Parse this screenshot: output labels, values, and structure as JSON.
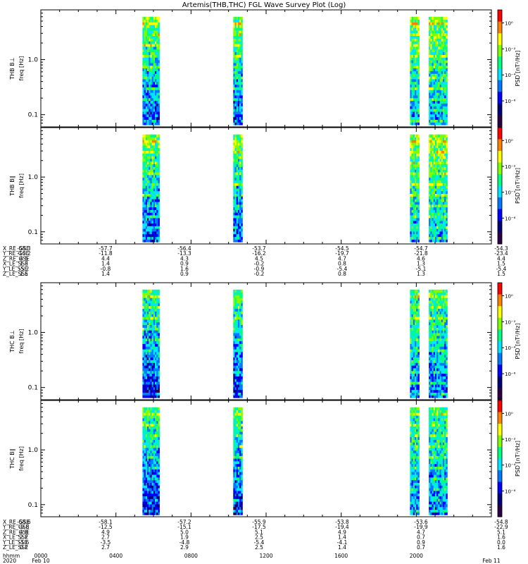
{
  "title": "Artemis(THB,THC) FGL Wave Survey Plot (Log)",
  "colors": {
    "colormap": [
      "#2b0040",
      "#00007a",
      "#0000ff",
      "#0078ff",
      "#00e6ff",
      "#00ff80",
      "#80ff00",
      "#ffff00",
      "#ff8000",
      "#ff0000"
    ]
  },
  "chart_data": [
    {
      "type": "heatmap",
      "name": "THB B⊥",
      "ylabel_probe": "THB B⊥",
      "ylabel": "freq [Hz]",
      "yscale": "log",
      "ylim": [
        0.06,
        8.0
      ],
      "y_ticks": [
        "1.0",
        "0.1"
      ],
      "colorbar_label": "PSD [nT²/Hz]",
      "colorbar_ticks": [
        "10⁰",
        "10⁻²",
        "10⁻⁴",
        "10⁻⁶"
      ],
      "data_intervals_hhmm": [
        [
          "05:25",
          "06:15"
        ],
        [
          "10:15",
          "10:40"
        ],
        [
          "19:40",
          "20:05"
        ],
        [
          "20:40",
          "21:35"
        ]
      ],
      "psd_log10_range": [
        -8,
        1
      ]
    },
    {
      "type": "heatmap",
      "name": "THB B∥",
      "ylabel_probe": "THB B∥",
      "ylabel": "freq [Hz]",
      "yscale": "log",
      "ylim": [
        0.06,
        8.0
      ],
      "y_ticks": [
        "1.0",
        "0.1"
      ],
      "colorbar_label": "PSD [nT²/Hz]",
      "colorbar_ticks": [
        "10⁰",
        "10⁻²",
        "10⁻⁴",
        "10⁻⁶"
      ],
      "data_intervals_hhmm": [
        [
          "05:25",
          "06:15"
        ],
        [
          "10:15",
          "10:40"
        ],
        [
          "19:40",
          "20:05"
        ],
        [
          "20:40",
          "21:35"
        ]
      ],
      "psd_log10_range": [
        -8,
        1
      ]
    },
    {
      "type": "heatmap",
      "name": "THC B⊥",
      "ylabel_probe": "THC B⊥",
      "ylabel": "freq [Hz]",
      "yscale": "log",
      "ylim": [
        0.06,
        8.0
      ],
      "y_ticks": [
        "1.0",
        "0.1"
      ],
      "colorbar_label": "PSD [nT²/Hz]",
      "colorbar_ticks": [
        "10⁰",
        "10⁻²",
        "10⁻⁴",
        "10⁻⁶"
      ],
      "data_intervals_hhmm": [
        [
          "05:25",
          "06:15"
        ],
        [
          "10:15",
          "10:40"
        ],
        [
          "19:40",
          "20:05"
        ],
        [
          "20:40",
          "21:35"
        ]
      ],
      "psd_log10_range": [
        -8,
        1
      ]
    },
    {
      "type": "heatmap",
      "name": "THC B∥",
      "ylabel_probe": "THC B∥",
      "ylabel": "freq [Hz]",
      "yscale": "log",
      "ylim": [
        0.06,
        8.0
      ],
      "y_ticks": [
        "1.0",
        "0.1"
      ],
      "colorbar_label": "PSD [nT²/Hz]",
      "colorbar_ticks": [
        "10⁰",
        "10⁻²",
        "10⁻⁴",
        "10⁻⁶"
      ],
      "data_intervals_hhmm": [
        [
          "05:25",
          "06:15"
        ],
        [
          "10:15",
          "10:40"
        ],
        [
          "19:40",
          "20:05"
        ],
        [
          "20:40",
          "21:35"
        ]
      ],
      "psd_log10_range": [
        -8,
        1
      ]
    }
  ],
  "ephemeris_thb": {
    "labels": [
      "X_RE_GSE",
      "Y_RE_GSE",
      "Z_RE_GSE",
      "X_LE_SSE",
      "Y_LE_SSE",
      "Z_LE_SSE"
    ],
    "columns": [
      [
        "-58.3",
        "-10.2",
        "4.5",
        "1.3",
        "-5.2",
        "1.5"
      ],
      [
        "-57.7",
        "-11.8",
        "4.4",
        "1.4",
        "-0.8",
        "1.4"
      ],
      [
        "-56.4",
        "-13.3",
        "4.3",
        "0.9",
        "1.6",
        "0.9"
      ],
      [
        "-53.7",
        "-16.2",
        "4.5",
        "-0.2",
        "-0.9",
        "-0.2"
      ],
      [
        "-54.5",
        "-19.7",
        "4.7",
        "0.8",
        "-5.4",
        "0.8"
      ],
      [
        "-54.7",
        "-21.8",
        "4.6",
        "1.3",
        "-5.1",
        "1.3"
      ],
      [
        "-54.3",
        "-23.4",
        "4.4",
        "1.5",
        "-5.4",
        "1.5"
      ]
    ]
  },
  "ephemeris_thc": {
    "labels": [
      "X_RE_GSE",
      "Y_RE_GSE",
      "Z_RE_GSE",
      "X_LE_SSE",
      "Y_LE_SSE",
      "Z_LE_SSE"
    ],
    "columns": [
      [
        "-58.6",
        "-9.8",
        "4.8",
        "2.2",
        "-1.6",
        "0.2"
      ],
      [
        "-58.1",
        "-12.5",
        "4.9",
        "2.7",
        "-3.5",
        "2.7"
      ],
      [
        "-57.2",
        "-15.1",
        "5.0",
        "1.9",
        "-4.8",
        "2.9"
      ],
      [
        "-55.9",
        "-17.5",
        "5.1",
        "2.5",
        "-5.4",
        "2.5"
      ],
      [
        "-53.8",
        "-19.4",
        "4.9",
        "1.4",
        "-4.1",
        "1.4"
      ],
      [
        "-53.6",
        "-19.9",
        "4.7",
        "0.7",
        "0.9",
        "0.7"
      ],
      [
        "-54.8",
        "-22.9",
        "5.1",
        "1.6",
        "0.0",
        "1.6"
      ]
    ]
  },
  "time_axis": {
    "label_hhmm": "hhmm",
    "label_year": "2020",
    "ticks": [
      "0000",
      "0400",
      "0800",
      "1200",
      "1600",
      "2000"
    ],
    "date_start": "Feb 10",
    "date_end": "Feb 11"
  }
}
